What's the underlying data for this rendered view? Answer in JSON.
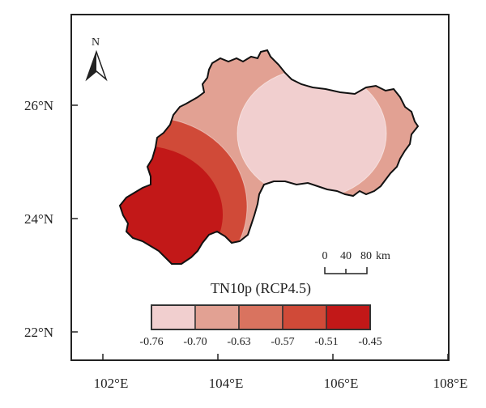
{
  "map": {
    "title": "TN10p (RCP4.5)",
    "north_label": "N",
    "x_ticks": [
      "102°E",
      "104°E",
      "106°E",
      "108°E"
    ],
    "y_ticks": [
      "26°N",
      "24°N",
      "22°N"
    ],
    "scale_bar": {
      "labels": [
        "0",
        "40",
        "80"
      ],
      "unit": "km"
    },
    "legend": {
      "breaks": [
        "-0.76",
        "-0.70",
        "-0.63",
        "-0.57",
        "-0.51",
        "-0.45"
      ],
      "colors": [
        "#f1cfcf",
        "#e2a193",
        "#d9735f",
        "#d04a38",
        "#c21818"
      ]
    },
    "boundary_color": "#111111",
    "frame_color": "#222222"
  }
}
